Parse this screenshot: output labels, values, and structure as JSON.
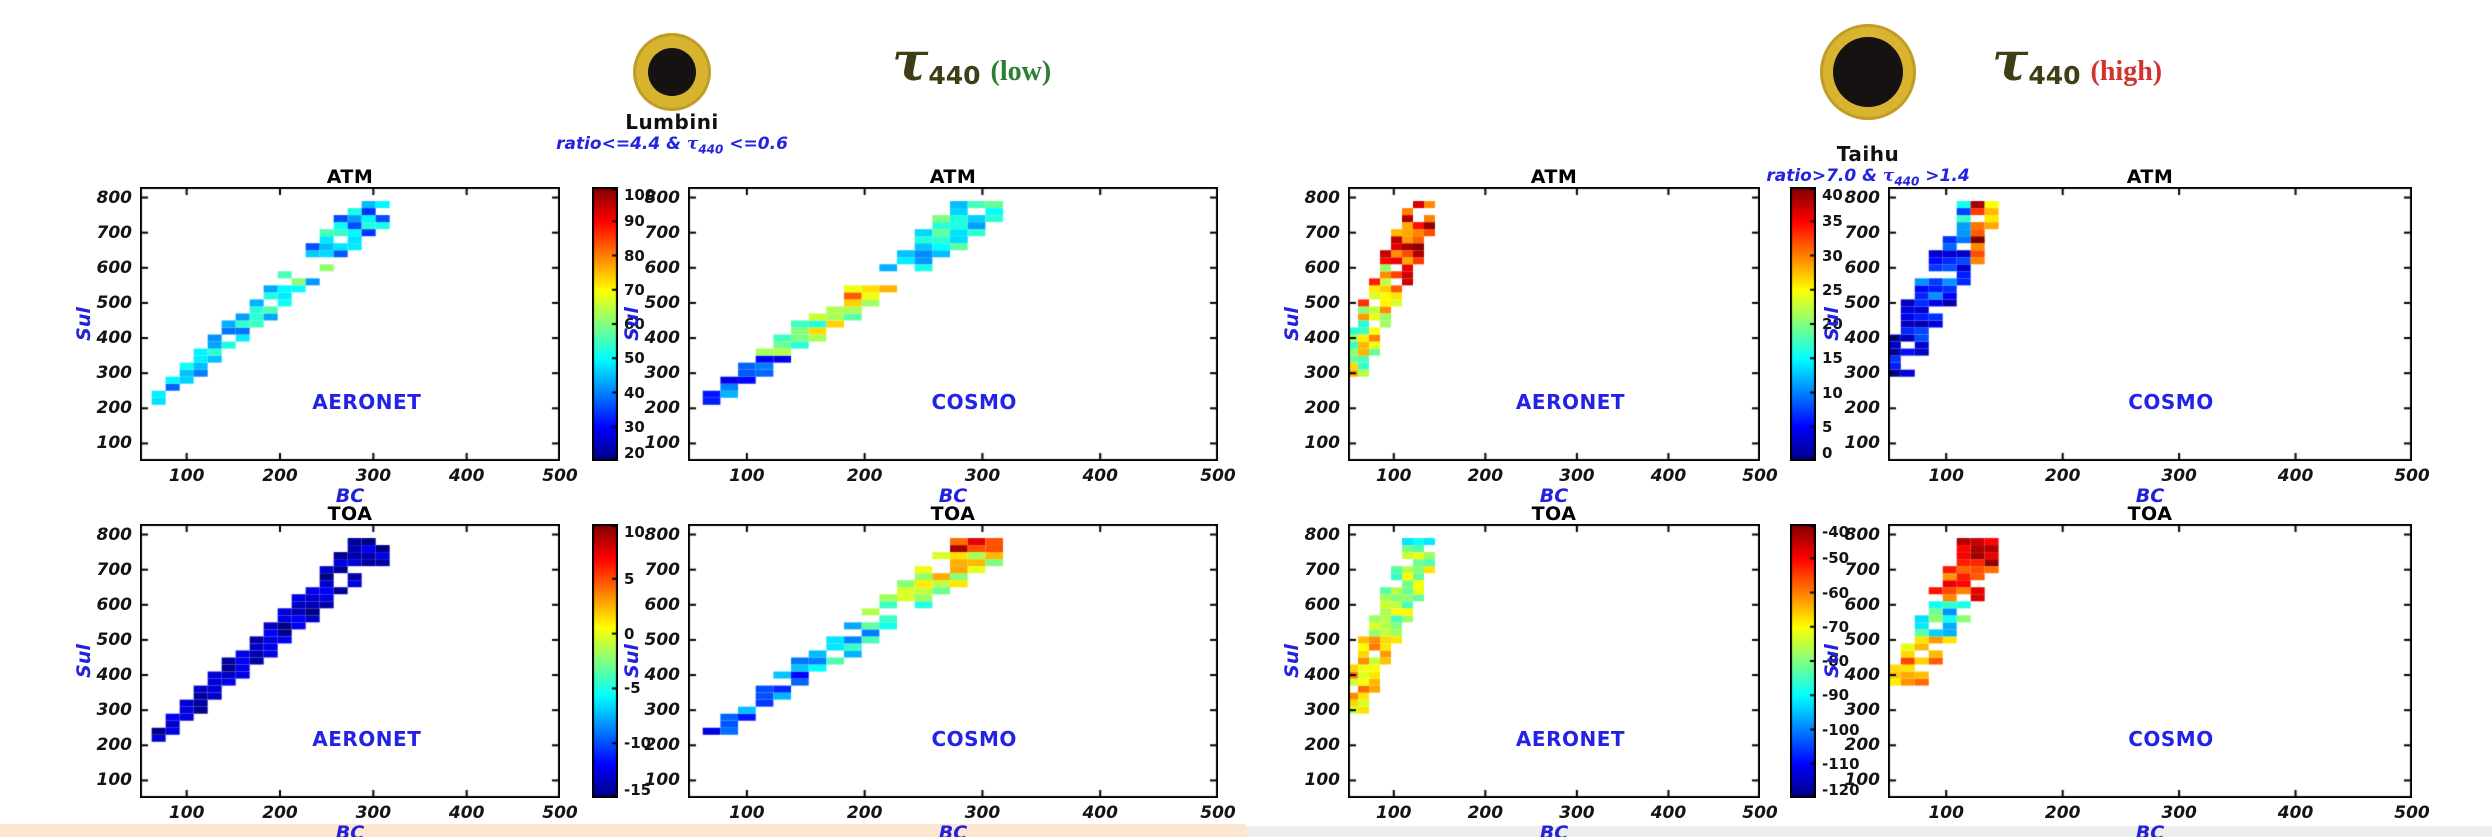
{
  "figure": {
    "background": "#ffffff",
    "strip_left_color": "#fbe6d2",
    "strip_right_color": "#ededed"
  },
  "axes": {
    "xlabel": "BC",
    "ylabel": "Sul",
    "x_ticks": [
      100,
      200,
      300,
      400,
      500
    ],
    "y_ticks": [
      100,
      200,
      300,
      400,
      500,
      600,
      700,
      800
    ],
    "x_range": [
      50,
      500
    ],
    "y_range": [
      50,
      830
    ],
    "label_color": "#2222dd",
    "tick_color": "#141414"
  },
  "chart_data": {
    "type": "heatmap",
    "colormap": "jet",
    "groups": [
      {
        "site": "Lumbini",
        "sun": {
          "outer_color": "#d9b430",
          "inner_color": "#171212"
        },
        "condition": {
          "prefix": "ratio<=4.4 & ",
          "tau": "τ",
          "sub": "440",
          "suffix": " <=0.6",
          "color": "#2424e0"
        },
        "tau_title": {
          "tau": "τ",
          "sub": "440",
          "qualifier": "(low)",
          "color": "#3f3f17",
          "qualifier_color": "#2e7d32"
        },
        "band": {
          "bc_start": 70,
          "bc_end": 315,
          "bc_step": 15,
          "sul_base": 225,
          "slope": 2.35,
          "hw_start": 25,
          "hw_end": 70,
          "cell_sul": 20,
          "sul_clamp": [
            205,
            795
          ]
        },
        "colorbars": [
          {
            "min": 20,
            "max": 100,
            "ticks": [
              100,
              90,
              80,
              70,
              60,
              50,
              40,
              30,
              20
            ]
          },
          {
            "min": -15,
            "max": 10,
            "ticks": [
              10,
              5,
              0,
              -5,
              -10,
              -15
            ]
          }
        ],
        "panels": [
          {
            "title": "ATM",
            "dataset": "AERONET",
            "row": 0,
            "seed": 11,
            "density": 0.85,
            "stripes": [
              [
                205,
                450,
                36,
                58
              ],
              [
                450,
                600,
                42,
                64
              ],
              [
                600,
                800,
                34,
                56
              ]
            ],
            "gaps": [
              [
                560,
                620,
                0.5
              ]
            ]
          },
          {
            "title": "ATM",
            "dataset": "COSMO",
            "row": 0,
            "seed": 22,
            "density": 0.82,
            "stripes": [
              [
                205,
                350,
                28,
                46
              ],
              [
                350,
                480,
                52,
                78
              ],
              [
                480,
                560,
                60,
                86
              ],
              [
                560,
                680,
                40,
                62
              ],
              [
                680,
                800,
                34,
                60
              ]
            ],
            "gaps": [
              [
                545,
                620,
                0.6
              ]
            ]
          },
          {
            "title": "TOA",
            "dataset": "AERONET",
            "row": 1,
            "seed": 33,
            "density": 0.9,
            "stripes": [
              [
                205,
                800,
                -15,
                -12
              ]
            ],
            "gaps": []
          },
          {
            "title": "TOA",
            "dataset": "COSMO",
            "row": 1,
            "seed": 44,
            "density": 0.82,
            "stripes": [
              [
                205,
                400,
                -13,
                -7
              ],
              [
                400,
                550,
                -9,
                -3
              ],
              [
                550,
                650,
                -5,
                1
              ],
              [
                650,
                740,
                -3,
                4
              ],
              [
                740,
                800,
                1,
                9
              ]
            ],
            "gaps": [
              [
                560,
                620,
                0.4
              ]
            ]
          }
        ]
      },
      {
        "site": "Taihu",
        "sun": {
          "outer_color": "#d9b430",
          "inner_color": "#171212"
        },
        "condition": {
          "prefix": "ratio>7.0 & ",
          "tau": "τ",
          "sub": "440",
          "suffix": " >1.4",
          "color": "#2424e0"
        },
        "tau_title": {
          "tau": "τ",
          "sub": "440",
          "qualifier": "(high)",
          "color": "#3f3f17",
          "qualifier_color": "#d0342c"
        },
        "band": {
          "bc_start": 55,
          "bc_end": 140,
          "bc_step": 12,
          "sul_base": 330,
          "slope": 5.6,
          "hw_start": 100,
          "hw_end": 120,
          "cell_sul": 20,
          "sul_clamp": [
            300,
            795
          ]
        },
        "colorbars": [
          {
            "min": 0,
            "max": 40,
            "ticks": [
              40,
              35,
              30,
              25,
              20,
              15,
              10,
              5,
              0
            ]
          },
          {
            "min": -120,
            "max": -40,
            "ticks": [
              -40,
              -50,
              -60,
              -70,
              -80,
              -90,
              -100,
              -110,
              -120
            ]
          }
        ],
        "panels": [
          {
            "title": "ATM",
            "dataset": "AERONET",
            "row": 0,
            "seed": 55,
            "density": 0.85,
            "stripes": [
              [
                300,
                450,
                16,
                30
              ],
              [
                450,
                600,
                20,
                34
              ],
              [
                600,
                800,
                24,
                40
              ]
            ],
            "gaps": [],
            "edge": [
              115,
              28,
              40
            ]
          },
          {
            "title": "ATM",
            "dataset": "COSMO",
            "row": 0,
            "seed": 66,
            "density": 0.85,
            "stripes": [
              [
                300,
                500,
                1,
                8
              ],
              [
                500,
                650,
                3,
                12
              ],
              [
                650,
                800,
                5,
                20
              ]
            ],
            "gaps": [],
            "edge": [
              117,
              24,
              40
            ]
          },
          {
            "title": "TOA",
            "dataset": "AERONET",
            "row": 1,
            "seed": 77,
            "density": 0.88,
            "stripes": [
              [
                300,
                500,
                -75,
                -58
              ],
              [
                500,
                700,
                -86,
                -66
              ],
              [
                700,
                800,
                -92,
                -70
              ]
            ],
            "gaps": []
          },
          {
            "title": "TOA",
            "dataset": "COSMO",
            "row": 1,
            "seed": 88,
            "density": 0.88,
            "stripes": [
              [
                380,
                500,
                -72,
                -55
              ],
              [
                500,
                600,
                -100,
                -78
              ],
              [
                600,
                700,
                -62,
                -45
              ],
              [
                700,
                800,
                -56,
                -41
              ]
            ],
            "gaps": []
          }
        ]
      }
    ]
  }
}
